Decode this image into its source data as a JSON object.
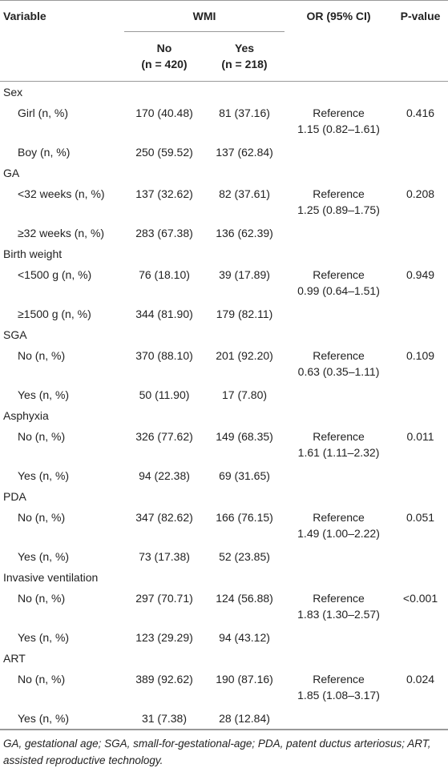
{
  "header": {
    "variable": "Variable",
    "wmi": "WMI",
    "or": "OR (95% CI)",
    "p": "P-value",
    "no": "No",
    "no_n": "(n = 420)",
    "yes": "Yes",
    "yes_n": "(n = 218)"
  },
  "groups": [
    {
      "name": "Sex",
      "rows": [
        {
          "label": "Girl (n, %)",
          "no": "170 (40.48)",
          "yes": "81 (37.16)"
        },
        {
          "label": "Boy (n, %)",
          "no": "250 (59.52)",
          "yes": "137 (62.84)"
        }
      ],
      "or": [
        "Reference",
        "1.15 (0.82–1.61)"
      ],
      "p": "0.416"
    },
    {
      "name": "GA",
      "rows": [
        {
          "label": "<32 weeks (n, %)",
          "no": "137 (32.62)",
          "yes": "82 (37.61)"
        },
        {
          "label": "≥32 weeks (n, %)",
          "no": "283 (67.38)",
          "yes": "136 (62.39)"
        }
      ],
      "or": [
        "Reference",
        "1.25 (0.89–1.75)"
      ],
      "p": "0.208"
    },
    {
      "name": "Birth weight",
      "rows": [
        {
          "label": "<1500 g (n, %)",
          "no": "76 (18.10)",
          "yes": "39 (17.89)"
        },
        {
          "label": "≥1500 g (n, %)",
          "no": "344 (81.90)",
          "yes": "179 (82.11)"
        }
      ],
      "or": [
        "Reference",
        "0.99 (0.64–1.51)"
      ],
      "p": "0.949"
    },
    {
      "name": "SGA",
      "rows": [
        {
          "label": "No (n, %)",
          "no": "370 (88.10)",
          "yes": "201 (92.20)"
        },
        {
          "label": "Yes (n, %)",
          "no": "50 (11.90)",
          "yes": "17 (7.80)"
        }
      ],
      "or": [
        "Reference",
        "0.63 (0.35–1.11)"
      ],
      "p": "0.109"
    },
    {
      "name": "Asphyxia",
      "rows": [
        {
          "label": "No (n, %)",
          "no": "326 (77.62)",
          "yes": "149 (68.35)"
        },
        {
          "label": "Yes (n, %)",
          "no": "94 (22.38)",
          "yes": "69 (31.65)"
        }
      ],
      "or": [
        "Reference",
        "1.61 (1.11–2.32)"
      ],
      "p": "0.011"
    },
    {
      "name": "PDA",
      "rows": [
        {
          "label": "No (n, %)",
          "no": "347 (82.62)",
          "yes": "166 (76.15)"
        },
        {
          "label": "Yes (n, %)",
          "no": "73 (17.38)",
          "yes": "52 (23.85)"
        }
      ],
      "or": [
        "Reference",
        "1.49 (1.00–2.22)"
      ],
      "p": "0.051"
    },
    {
      "name": "Invasive ventilation",
      "rows": [
        {
          "label": "No (n, %)",
          "no": "297 (70.71)",
          "yes": "124 (56.88)"
        },
        {
          "label": "Yes (n, %)",
          "no": "123 (29.29)",
          "yes": "94 (43.12)"
        }
      ],
      "or": [
        "Reference",
        "1.83 (1.30–2.57)"
      ],
      "p": "<0.001"
    },
    {
      "name": "ART",
      "rows": [
        {
          "label": "No (n, %)",
          "no": "389 (92.62)",
          "yes": "190 (87.16)"
        },
        {
          "label": "Yes (n, %)",
          "no": "31 (7.38)",
          "yes": "28 (12.84)"
        }
      ],
      "or": [
        "Reference",
        "1.85 (1.08–3.17)"
      ],
      "p": "0.024"
    }
  ],
  "footnote": "GA, gestational age; SGA, small-for-gestational-age; PDA, patent ductus arteriosus; ART, assisted reproductive technology."
}
